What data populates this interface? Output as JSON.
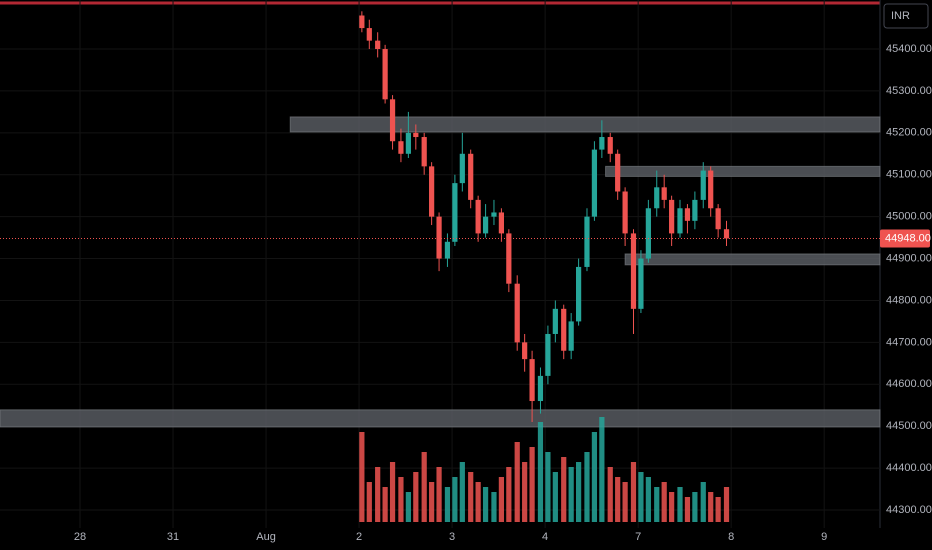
{
  "chart_data": {
    "type": "candlestick",
    "currency": "INR",
    "x": [
      3.03,
      3.11,
      3.2,
      3.28,
      3.36,
      3.45,
      3.53,
      3.61,
      3.7,
      3.78,
      3.86,
      3.95,
      4.03,
      4.11,
      4.2,
      4.28,
      4.36,
      4.45,
      4.53,
      4.61,
      4.7,
      4.78,
      4.86,
      4.95,
      5.03,
      5.11,
      5.2,
      5.28,
      5.36,
      5.45,
      5.53,
      5.61,
      5.7,
      5.78,
      5.86,
      5.95,
      6.03,
      6.11,
      6.2,
      6.28,
      6.36,
      6.45,
      6.53,
      6.61,
      6.7,
      6.78,
      6.86,
      6.95
    ],
    "open": [
      45480,
      45450,
      45420,
      45400,
      45280,
      45180,
      45150,
      45200,
      45190,
      45120,
      45000,
      44900,
      44940,
      45080,
      45150,
      45040,
      44960,
      45000,
      45010,
      44960,
      44840,
      44700,
      44660,
      44560,
      44620,
      44720,
      44780,
      44680,
      44750,
      44880,
      45000,
      45160,
      45190,
      45150,
      45060,
      44960,
      44780,
      44900,
      45020,
      45070,
      45040,
      44960,
      45020,
      44990,
      45040,
      45110,
      45020,
      44970
    ],
    "high": [
      45490,
      45470,
      45440,
      45410,
      45290,
      45210,
      45250,
      45220,
      45200,
      45130,
      45010,
      44960,
      45100,
      45200,
      45160,
      45050,
      45030,
      45040,
      45020,
      44970,
      44860,
      44720,
      44680,
      44640,
      44740,
      44800,
      44790,
      44770,
      44900,
      45020,
      45180,
      45230,
      45200,
      45160,
      45070,
      44970,
      44920,
      45040,
      45110,
      45100,
      45050,
      45040,
      45030,
      45060,
      45130,
      45120,
      45030,
      44990
    ],
    "low": [
      45440,
      45400,
      45380,
      45270,
      45160,
      45130,
      45140,
      45160,
      45100,
      44980,
      44870,
      44880,
      44930,
      45060,
      45020,
      44940,
      44950,
      44980,
      44940,
      44820,
      44680,
      44630,
      44510,
      44530,
      44600,
      44700,
      44660,
      44660,
      44740,
      44870,
      44990,
      45140,
      45130,
      45040,
      44930,
      44720,
      44770,
      44890,
      45000,
      45020,
      44930,
      44950,
      44960,
      44970,
      45020,
      45000,
      44950,
      44930
    ],
    "close": [
      45450,
      45420,
      45400,
      45280,
      45180,
      45150,
      45200,
      45190,
      45120,
      45000,
      44900,
      44940,
      45080,
      45150,
      45040,
      44960,
      45000,
      45010,
      44960,
      44840,
      44700,
      44660,
      44560,
      44620,
      44720,
      44780,
      44680,
      44750,
      44880,
      45000,
      45160,
      45190,
      45150,
      45060,
      44960,
      44780,
      44900,
      45020,
      45070,
      45040,
      44960,
      45020,
      44990,
      45040,
      45110,
      45020,
      44970,
      44948
    ],
    "volume": [
      90,
      40,
      55,
      35,
      60,
      45,
      30,
      50,
      70,
      40,
      55,
      35,
      45,
      60,
      50,
      40,
      35,
      30,
      45,
      55,
      80,
      60,
      75,
      100,
      70,
      50,
      65,
      55,
      60,
      70,
      90,
      105,
      55,
      45,
      40,
      60,
      50,
      45,
      35,
      40,
      30,
      35,
      25,
      30,
      40,
      30,
      25,
      35
    ],
    "up_color": "#26a69a",
    "down_color": "#ef5350",
    "zones": [
      {
        "x": [
          2.26,
          8.6
        ],
        "y": [
          45202,
          45238
        ]
      },
      {
        "x": [
          5.65,
          8.6
        ],
        "y": [
          45096,
          45120
        ]
      },
      {
        "x": [
          5.86,
          8.6
        ],
        "y": [
          44885,
          44911
        ]
      },
      {
        "x": [
          -0.86,
          8.6
        ],
        "y": [
          44498,
          44539
        ]
      }
    ],
    "last_price": {
      "value": 44948,
      "label": "44948.00"
    },
    "xlim": [
      -0.86,
      8.6
    ],
    "xticks": [
      {
        "value": 0,
        "label": "28"
      },
      {
        "value": 1,
        "label": "31"
      },
      {
        "value": 2,
        "label": "Aug"
      },
      {
        "value": 3,
        "label": "2"
      },
      {
        "value": 4,
        "label": "3"
      },
      {
        "value": 5,
        "label": "4"
      },
      {
        "value": 6,
        "label": "7"
      },
      {
        "value": 7,
        "label": "8"
      },
      {
        "value": 8,
        "label": "9"
      }
    ],
    "ylim": [
      44257,
      45517
    ],
    "yticks": [
      {
        "value": 45400,
        "label": "45400.00"
      },
      {
        "value": 45300,
        "label": "45300.00"
      },
      {
        "value": 45200,
        "label": "45200.00"
      },
      {
        "value": 45100,
        "label": "45100.00"
      },
      {
        "value": 45000,
        "label": "45000.00"
      },
      {
        "value": 44900,
        "label": "44900.00"
      },
      {
        "value": 44800,
        "label": "44800.00"
      },
      {
        "value": 44700,
        "label": "44700.00"
      },
      {
        "value": 44600,
        "label": "44600.00"
      },
      {
        "value": 44500,
        "label": "44500.00"
      },
      {
        "value": 44400,
        "label": "44400.00"
      },
      {
        "value": 44300,
        "label": "44300.00"
      }
    ],
    "grid": true
  }
}
